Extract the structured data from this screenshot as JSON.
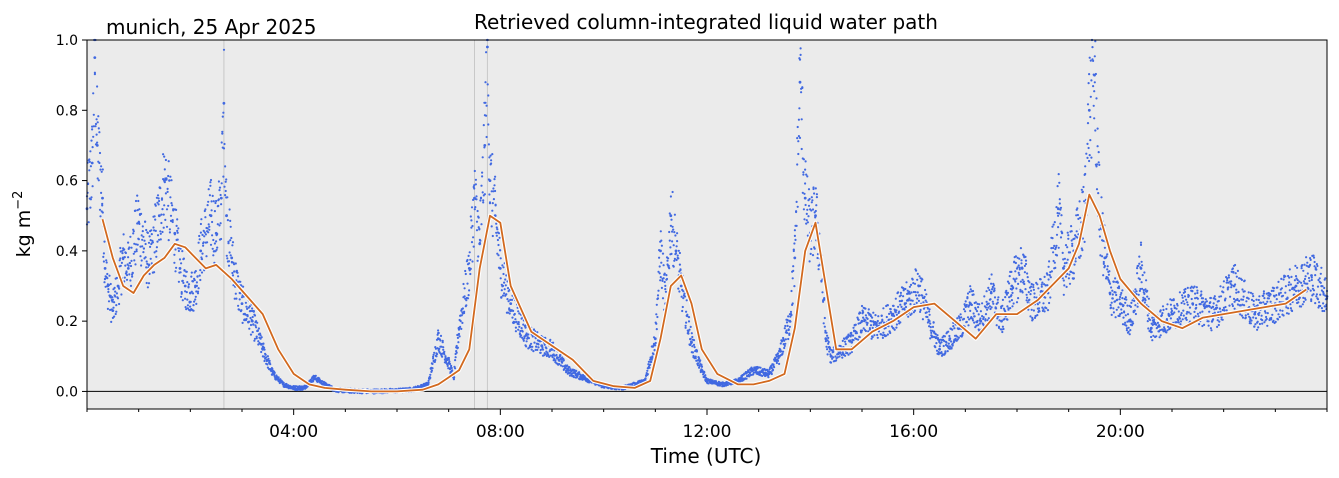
{
  "chart_data": {
    "type": "line",
    "title": "Retrieved column-integrated liquid water path",
    "subtitle": "munich, 25 Apr 2025",
    "xlabel": "Time (UTC)",
    "ylabel_base": "kg m",
    "ylabel_exp": "−2",
    "xlim_hours": [
      0,
      24
    ],
    "ylim": [
      -0.05,
      1.0
    ],
    "x_ticks": [
      {
        "hour": 4,
        "label": "04:00"
      },
      {
        "hour": 8,
        "label": "08:00"
      },
      {
        "hour": 12,
        "label": "12:00"
      },
      {
        "hour": 16,
        "label": "16:00"
      },
      {
        "hour": 20,
        "label": "20:00"
      }
    ],
    "y_ticks": [
      {
        "value": 0.0,
        "label": "0.0"
      },
      {
        "value": 0.2,
        "label": "0.2"
      },
      {
        "value": 0.4,
        "label": "0.4"
      },
      {
        "value": 0.6,
        "label": "0.6"
      },
      {
        "value": 0.8,
        "label": "0.8"
      },
      {
        "value": 1.0,
        "label": "1.0"
      }
    ],
    "zero_line": 0.0,
    "flag_lines_hours": [
      2.65,
      7.5,
      7.75
    ],
    "grid": false,
    "background": "#ebebeb",
    "series": [
      {
        "style": "points",
        "color": "#4169e1",
        "x_hours": [
          0.0,
          0.1,
          0.15,
          0.2,
          0.3,
          0.35,
          0.4,
          0.5,
          0.6,
          0.7,
          0.8,
          1.0,
          1.2,
          1.4,
          1.5,
          1.7,
          1.8,
          1.9,
          2.0,
          2.1,
          2.2,
          2.4,
          2.5,
          2.6,
          2.65,
          2.7,
          2.8,
          2.9,
          3.0,
          3.2,
          3.4,
          3.6,
          3.8,
          4.0,
          4.2,
          4.4,
          4.6,
          4.8,
          5.0,
          5.5,
          6.0,
          6.3,
          6.6,
          6.8,
          7.0,
          7.1,
          7.2,
          7.4,
          7.5,
          7.6,
          7.7,
          7.75,
          7.8,
          7.9,
          8.0,
          8.2,
          8.5,
          8.8,
          9.0,
          9.3,
          9.6,
          10.0,
          10.4,
          10.8,
          11.0,
          11.1,
          11.2,
          11.3,
          11.4,
          11.5,
          11.7,
          11.9,
          12.0,
          12.3,
          12.6,
          12.9,
          13.2,
          13.4,
          13.6,
          13.7,
          13.8,
          13.9,
          14.0,
          14.1,
          14.2,
          14.3,
          14.4,
          14.6,
          14.8,
          15.0,
          15.3,
          15.6,
          15.9,
          16.1,
          16.3,
          16.5,
          16.7,
          16.9,
          17.1,
          17.3,
          17.5,
          17.7,
          17.9,
          18.1,
          18.3,
          18.6,
          18.8,
          18.9,
          19.1,
          19.3,
          19.4,
          19.5,
          19.6,
          19.7,
          19.8,
          20.0,
          20.2,
          20.4,
          20.6,
          20.8,
          21.0,
          21.4,
          21.8,
          22.2,
          22.6,
          23.0,
          23.4,
          23.7,
          24.0
        ],
        "values": [
          0.52,
          0.65,
          0.95,
          0.7,
          0.55,
          0.35,
          0.3,
          0.23,
          0.3,
          0.38,
          0.35,
          0.48,
          0.36,
          0.5,
          0.6,
          0.45,
          0.35,
          0.3,
          0.28,
          0.3,
          0.4,
          0.5,
          0.45,
          0.55,
          0.82,
          0.5,
          0.38,
          0.3,
          0.25,
          0.2,
          0.12,
          0.05,
          0.02,
          0.01,
          0.01,
          0.04,
          0.02,
          0.005,
          0.002,
          0.0,
          0.002,
          0.005,
          0.02,
          0.15,
          0.08,
          0.04,
          0.18,
          0.35,
          0.55,
          0.42,
          0.7,
          0.98,
          0.6,
          0.5,
          0.35,
          0.25,
          0.16,
          0.13,
          0.12,
          0.06,
          0.04,
          0.015,
          0.01,
          0.03,
          0.15,
          0.4,
          0.25,
          0.5,
          0.4,
          0.3,
          0.14,
          0.06,
          0.03,
          0.02,
          0.03,
          0.06,
          0.05,
          0.1,
          0.2,
          0.38,
          0.88,
          0.55,
          0.45,
          0.5,
          0.38,
          0.15,
          0.1,
          0.12,
          0.14,
          0.2,
          0.18,
          0.22,
          0.26,
          0.3,
          0.2,
          0.12,
          0.15,
          0.18,
          0.25,
          0.2,
          0.28,
          0.2,
          0.3,
          0.35,
          0.25,
          0.28,
          0.52,
          0.35,
          0.4,
          0.5,
          0.8,
          0.9,
          0.5,
          0.38,
          0.28,
          0.25,
          0.2,
          0.35,
          0.18,
          0.2,
          0.22,
          0.25,
          0.22,
          0.3,
          0.22,
          0.25,
          0.3,
          0.33,
          0.27
        ]
      },
      {
        "style": "line",
        "color": "#d2691e",
        "x_hours": [
          0.3,
          0.5,
          0.7,
          0.9,
          1.1,
          1.3,
          1.5,
          1.7,
          1.9,
          2.1,
          2.3,
          2.5,
          2.8,
          3.1,
          3.4,
          3.7,
          4.0,
          4.3,
          4.6,
          5.0,
          5.5,
          6.0,
          6.5,
          6.8,
          7.0,
          7.2,
          7.4,
          7.6,
          7.8,
          8.0,
          8.2,
          8.6,
          9.0,
          9.4,
          9.8,
          10.2,
          10.6,
          10.9,
          11.1,
          11.3,
          11.5,
          11.7,
          11.9,
          12.2,
          12.6,
          12.9,
          13.2,
          13.5,
          13.7,
          13.9,
          14.1,
          14.3,
          14.5,
          14.8,
          15.2,
          15.6,
          16.0,
          16.4,
          16.8,
          17.2,
          17.6,
          18.0,
          18.4,
          18.8,
          19.0,
          19.2,
          19.4,
          19.6,
          19.8,
          20.0,
          20.4,
          20.8,
          21.2,
          21.6,
          22.0,
          22.4,
          22.8,
          23.2,
          23.6
        ],
        "values": [
          0.49,
          0.38,
          0.3,
          0.28,
          0.33,
          0.36,
          0.38,
          0.42,
          0.41,
          0.38,
          0.35,
          0.36,
          0.32,
          0.27,
          0.22,
          0.12,
          0.05,
          0.02,
          0.01,
          0.005,
          0.0,
          0.0,
          0.005,
          0.02,
          0.04,
          0.06,
          0.12,
          0.35,
          0.5,
          0.48,
          0.3,
          0.17,
          0.13,
          0.09,
          0.03,
          0.015,
          0.01,
          0.03,
          0.15,
          0.3,
          0.33,
          0.25,
          0.12,
          0.05,
          0.02,
          0.02,
          0.03,
          0.05,
          0.18,
          0.4,
          0.48,
          0.3,
          0.12,
          0.12,
          0.17,
          0.2,
          0.24,
          0.25,
          0.2,
          0.15,
          0.22,
          0.22,
          0.26,
          0.32,
          0.35,
          0.42,
          0.56,
          0.5,
          0.4,
          0.32,
          0.25,
          0.2,
          0.18,
          0.21,
          0.22,
          0.23,
          0.24,
          0.25,
          0.29
        ]
      }
    ]
  }
}
